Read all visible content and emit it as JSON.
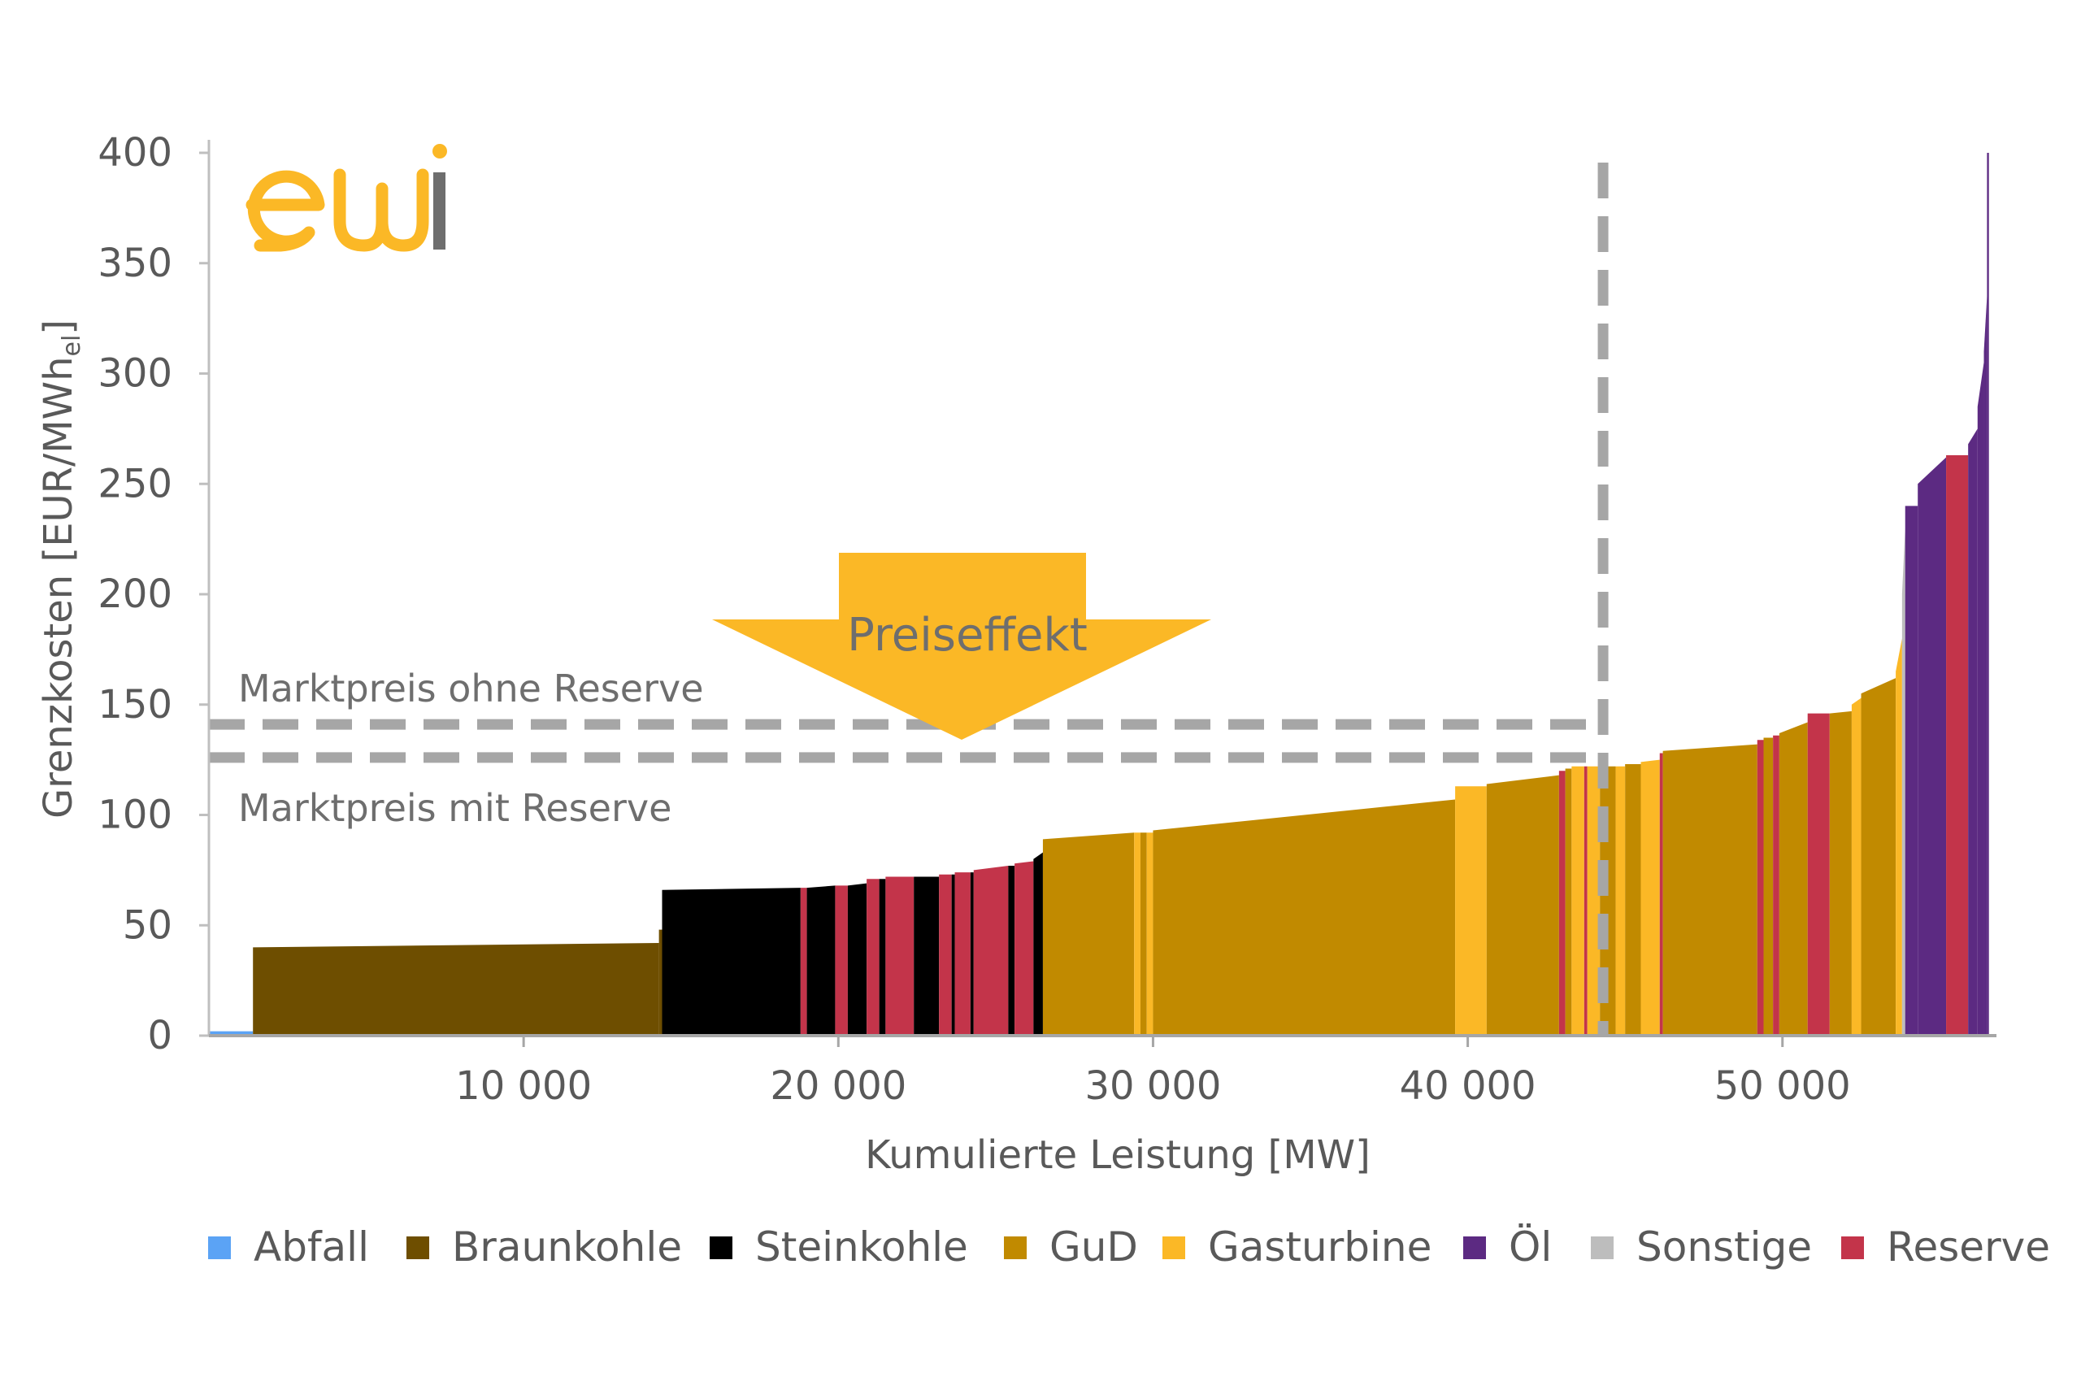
{
  "logo": {
    "text": "ewi",
    "colors": {
      "e": "#FBB826",
      "w": "#FBB826",
      "i_stem": "#6E6E6E",
      "i_dot": "#FBB826"
    }
  },
  "chart_data": {
    "type": "bar",
    "subtype": "merit-order step chart",
    "ylabel": "Grenzkosten [EUR/MWh",
    "ylabel_sub": "el",
    "ylabel_end": "]",
    "xlabel": "Kumulierte Leistung [MW]",
    "xlim": [
      0,
      56800
    ],
    "ylim": [
      0,
      400
    ],
    "y_ticks": [
      0,
      50,
      100,
      150,
      200,
      250,
      300,
      350,
      400
    ],
    "y_tick_labels": [
      "0",
      "50",
      "100",
      "150",
      "200",
      "250",
      "300",
      "350",
      "400"
    ],
    "x_ticks": [
      10000,
      20000,
      30000,
      40000,
      50000
    ],
    "x_tick_labels": [
      "10 000",
      "20 000",
      "30 000",
      "40 000",
      "50 000"
    ],
    "grid": false,
    "legend_position": "bottom",
    "categories": [
      "Abfall",
      "Braunkohle",
      "Steinkohle",
      "GuD",
      "Gasturbine",
      "Öl",
      "Sonstige",
      "Reserve"
    ],
    "colors": {
      "Abfall": "#5BA3F5",
      "Braunkohle": "#6E4E00",
      "Steinkohle": "#000000",
      "GuD": "#C18A00",
      "Gasturbine": "#FBB826",
      "Öl": "#5C2A82",
      "Sonstige": "#BDBDBD",
      "Reserve": "#C3344A"
    },
    "segments": [
      {
        "type": "Abfall",
        "x0": 0,
        "x1": 1400,
        "y0": 2,
        "y1": 2
      },
      {
        "type": "Braunkohle",
        "x0": 1400,
        "x1": 14300,
        "y0": 40,
        "y1": 42
      },
      {
        "type": "Braunkohle",
        "x0": 14300,
        "x1": 14400,
        "y0": 48,
        "y1": 48
      },
      {
        "type": "Steinkohle",
        "x0": 14400,
        "x1": 18800,
        "y0": 66,
        "y1": 67
      },
      {
        "type": "Reserve",
        "x0": 18800,
        "x1": 19000,
        "y0": 67,
        "y1": 67
      },
      {
        "type": "Steinkohle",
        "x0": 19000,
        "x1": 19900,
        "y0": 67,
        "y1": 68
      },
      {
        "type": "Reserve",
        "x0": 19900,
        "x1": 20300,
        "y0": 68,
        "y1": 68
      },
      {
        "type": "Steinkohle",
        "x0": 20300,
        "x1": 20900,
        "y0": 68,
        "y1": 69
      },
      {
        "type": "Reserve",
        "x0": 20900,
        "x1": 21300,
        "y0": 71,
        "y1": 71
      },
      {
        "type": "Steinkohle",
        "x0": 21300,
        "x1": 21500,
        "y0": 71,
        "y1": 71
      },
      {
        "type": "Reserve",
        "x0": 21500,
        "x1": 22400,
        "y0": 72,
        "y1": 72
      },
      {
        "type": "Steinkohle",
        "x0": 22400,
        "x1": 23200,
        "y0": 72,
        "y1": 72
      },
      {
        "type": "Reserve",
        "x0": 23200,
        "x1": 23600,
        "y0": 73,
        "y1": 73
      },
      {
        "type": "Steinkohle",
        "x0": 23600,
        "x1": 23700,
        "y0": 73,
        "y1": 73
      },
      {
        "type": "Reserve",
        "x0": 23700,
        "x1": 24200,
        "y0": 74,
        "y1": 74
      },
      {
        "type": "Steinkohle",
        "x0": 24200,
        "x1": 24300,
        "y0": 74,
        "y1": 74
      },
      {
        "type": "Reserve",
        "x0": 24300,
        "x1": 25400,
        "y0": 75,
        "y1": 77
      },
      {
        "type": "Steinkohle",
        "x0": 25400,
        "x1": 25600,
        "y0": 77,
        "y1": 77
      },
      {
        "type": "Reserve",
        "x0": 25600,
        "x1": 26200,
        "y0": 78,
        "y1": 79
      },
      {
        "type": "Steinkohle",
        "x0": 26200,
        "x1": 26500,
        "y0": 80,
        "y1": 83
      },
      {
        "type": "GuD",
        "x0": 26500,
        "x1": 29400,
        "y0": 89,
        "y1": 92
      },
      {
        "type": "Gasturbine",
        "x0": 29400,
        "x1": 29600,
        "y0": 92,
        "y1": 92
      },
      {
        "type": "GuD",
        "x0": 29600,
        "x1": 29800,
        "y0": 92,
        "y1": 92
      },
      {
        "type": "Gasturbine",
        "x0": 29800,
        "x1": 30000,
        "y0": 92,
        "y1": 92
      },
      {
        "type": "GuD",
        "x0": 30000,
        "x1": 39600,
        "y0": 93,
        "y1": 107
      },
      {
        "type": "Gasturbine",
        "x0": 39600,
        "x1": 40600,
        "y0": 113,
        "y1": 113
      },
      {
        "type": "GuD",
        "x0": 40600,
        "x1": 42900,
        "y0": 114,
        "y1": 118
      },
      {
        "type": "Reserve",
        "x0": 42900,
        "x1": 43100,
        "y0": 120,
        "y1": 120
      },
      {
        "type": "GuD",
        "x0": 43100,
        "x1": 43300,
        "y0": 121,
        "y1": 121
      },
      {
        "type": "Gasturbine",
        "x0": 43300,
        "x1": 43700,
        "y0": 122,
        "y1": 122
      },
      {
        "type": "Reserve",
        "x0": 43700,
        "x1": 43800,
        "y0": 122,
        "y1": 122
      },
      {
        "type": "Gasturbine",
        "x0": 43800,
        "x1": 44200,
        "y0": 122,
        "y1": 122
      },
      {
        "type": "GuD",
        "x0": 44200,
        "x1": 44700,
        "y0": 122,
        "y1": 122
      },
      {
        "type": "Gasturbine",
        "x0": 44700,
        "x1": 45000,
        "y0": 122,
        "y1": 122
      },
      {
        "type": "GuD",
        "x0": 45000,
        "x1": 45500,
        "y0": 123,
        "y1": 123
      },
      {
        "type": "Gasturbine",
        "x0": 45500,
        "x1": 46100,
        "y0": 124,
        "y1": 125
      },
      {
        "type": "Reserve",
        "x0": 46100,
        "x1": 46200,
        "y0": 128,
        "y1": 128
      },
      {
        "type": "GuD",
        "x0": 46200,
        "x1": 49200,
        "y0": 129,
        "y1": 132
      },
      {
        "type": "Reserve",
        "x0": 49200,
        "x1": 49400,
        "y0": 134,
        "y1": 134
      },
      {
        "type": "GuD",
        "x0": 49400,
        "x1": 49700,
        "y0": 135,
        "y1": 135
      },
      {
        "type": "Reserve",
        "x0": 49700,
        "x1": 49900,
        "y0": 136,
        "y1": 136
      },
      {
        "type": "GuD",
        "x0": 49900,
        "x1": 50800,
        "y0": 137,
        "y1": 142
      },
      {
        "type": "Reserve",
        "x0": 50800,
        "x1": 51500,
        "y0": 146,
        "y1": 146
      },
      {
        "type": "GuD",
        "x0": 51500,
        "x1": 52200,
        "y0": 146,
        "y1": 147
      },
      {
        "type": "Gasturbine",
        "x0": 52200,
        "x1": 52500,
        "y0": 150,
        "y1": 153
      },
      {
        "type": "GuD",
        "x0": 52500,
        "x1": 53600,
        "y0": 155,
        "y1": 162
      },
      {
        "type": "Gasturbine",
        "x0": 53600,
        "x1": 53800,
        "y0": 165,
        "y1": 180
      },
      {
        "type": "Sonstige",
        "x0": 53800,
        "x1": 53900,
        "y0": 200,
        "y1": 230
      },
      {
        "type": "Öl",
        "x0": 53900,
        "x1": 54300,
        "y0": 240,
        "y1": 240
      },
      {
        "type": "Öl",
        "x0": 54300,
        "x1": 55200,
        "y0": 250,
        "y1": 262
      },
      {
        "type": "Reserve",
        "x0": 55200,
        "x1": 55900,
        "y0": 263,
        "y1": 263
      },
      {
        "type": "Öl",
        "x0": 55900,
        "x1": 56200,
        "y0": 268,
        "y1": 275
      },
      {
        "type": "Öl",
        "x0": 56200,
        "x1": 56400,
        "y0": 285,
        "y1": 305
      },
      {
        "type": "Öl",
        "x0": 56400,
        "x1": 56500,
        "y0": 310,
        "y1": 335
      },
      {
        "type": "Öl",
        "x0": 56500,
        "x1": 56560,
        "y0": 400,
        "y1": 400
      }
    ],
    "reference_lines": [
      {
        "label": "Marktpreis ohne Reserve",
        "y": 141,
        "x_end": 44300,
        "color": "#A6A6A6"
      },
      {
        "label": "Marktpreis mit Reserve",
        "y": 126,
        "x_end": 44300,
        "color": "#A6A6A6"
      }
    ],
    "vertical_line": {
      "x": 44300,
      "color": "#A6A6A6"
    },
    "annotations": [
      {
        "text": "Preiseffekt",
        "shape": "down-arrow",
        "color": "#FBB826",
        "text_color": "#6E6E6E"
      }
    ]
  }
}
